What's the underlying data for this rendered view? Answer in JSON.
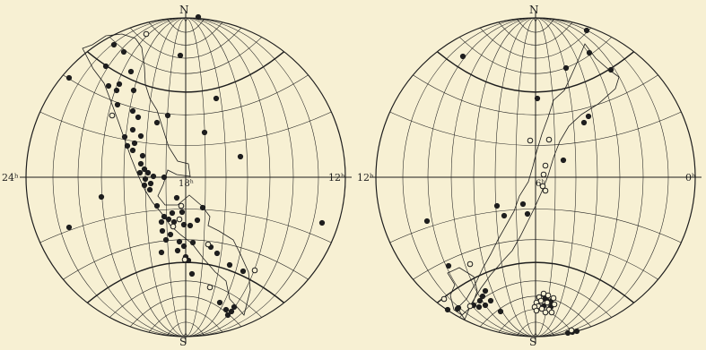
{
  "figure": {
    "background": "#f7f0d3",
    "ink": "#1e1e1e",
    "chart_left": {
      "labels": {
        "north": "N",
        "south": "S",
        "left": "24ʰ",
        "right": "12ʰ",
        "center": "18ʰ"
      },
      "filled_markers": 71,
      "open_markers": 9
    },
    "chart_right": {
      "labels": {
        "north": "N",
        "south": "S",
        "left": "12ʰ",
        "right": "0ʰ",
        "center": "6ʰ"
      },
      "filled_markers": 34,
      "open_markers": 25
    }
  }
}
